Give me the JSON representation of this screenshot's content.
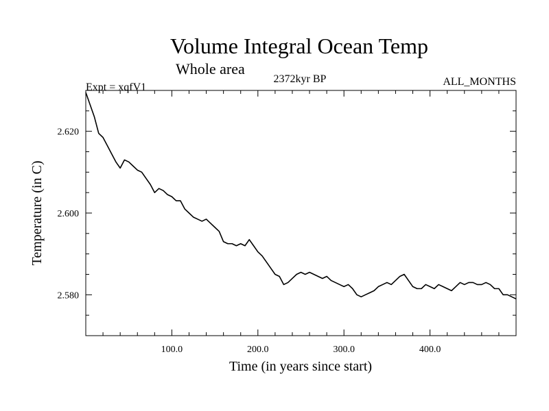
{
  "chart_data": {
    "type": "line",
    "title": "Volume Integral Ocean Temp",
    "subtitle": "Whole area",
    "experiment": "Expt = xqfV1",
    "period": "2372kyr BP",
    "months": "ALL_MONTHS",
    "xlabel": "Time (in years since start)",
    "ylabel": "Temperature (in C)",
    "xlim": [
      0,
      500
    ],
    "ylim": [
      2.57,
      2.63
    ],
    "x_ticks": [
      100,
      200,
      300,
      400
    ],
    "x_tick_labels": [
      "100.0",
      "200.0",
      "300.0",
      "400.0"
    ],
    "y_ticks": [
      2.58,
      2.6,
      2.62
    ],
    "y_tick_labels": [
      "2.580",
      "2.600",
      "2.620"
    ],
    "series": [
      {
        "name": "Volume integral ocean temperature",
        "x": [
          0,
          5,
          10,
          15,
          20,
          25,
          30,
          35,
          40,
          45,
          50,
          55,
          60,
          65,
          70,
          75,
          80,
          85,
          90,
          95,
          100,
          105,
          110,
          115,
          120,
          125,
          130,
          135,
          140,
          145,
          150,
          155,
          160,
          165,
          170,
          175,
          180,
          185,
          190,
          195,
          200,
          205,
          210,
          215,
          220,
          225,
          230,
          235,
          240,
          245,
          250,
          255,
          260,
          265,
          270,
          275,
          280,
          285,
          290,
          295,
          300,
          305,
          310,
          315,
          320,
          325,
          330,
          335,
          340,
          345,
          350,
          355,
          360,
          365,
          370,
          375,
          380,
          385,
          390,
          395,
          400,
          405,
          410,
          415,
          420,
          425,
          430,
          435,
          440,
          445,
          450,
          455,
          460,
          465,
          470,
          475,
          480,
          485,
          490,
          495,
          500
        ],
        "values": [
          2.6295,
          2.6265,
          2.6235,
          2.6195,
          2.6185,
          2.6165,
          2.6145,
          2.6125,
          2.611,
          2.613,
          2.6125,
          2.6115,
          2.6105,
          2.61,
          2.6085,
          2.607,
          2.605,
          2.606,
          2.6055,
          2.6045,
          2.604,
          2.603,
          2.603,
          2.601,
          2.6,
          2.599,
          2.5985,
          2.598,
          2.5985,
          2.5975,
          2.5965,
          2.5955,
          2.593,
          2.5925,
          2.5925,
          2.592,
          2.5925,
          2.592,
          2.5935,
          2.592,
          2.5905,
          2.5895,
          2.588,
          2.5865,
          2.585,
          2.5845,
          2.5825,
          2.583,
          2.584,
          2.585,
          2.5855,
          2.585,
          2.5855,
          2.585,
          2.5845,
          2.584,
          2.5845,
          2.5835,
          2.583,
          2.5825,
          2.582,
          2.5825,
          2.5815,
          2.58,
          2.5795,
          2.58,
          2.5805,
          2.581,
          2.582,
          2.5825,
          2.583,
          2.5825,
          2.5835,
          2.5845,
          2.585,
          2.5835,
          2.582,
          2.5815,
          2.5815,
          2.5825,
          2.582,
          2.5815,
          2.5825,
          2.582,
          2.5815,
          2.581,
          2.582,
          2.583,
          2.5825,
          2.583,
          2.583,
          2.5825,
          2.5825,
          2.583,
          2.5825,
          2.5815,
          2.5815,
          2.58,
          2.58,
          2.5795,
          2.579
        ]
      }
    ]
  }
}
